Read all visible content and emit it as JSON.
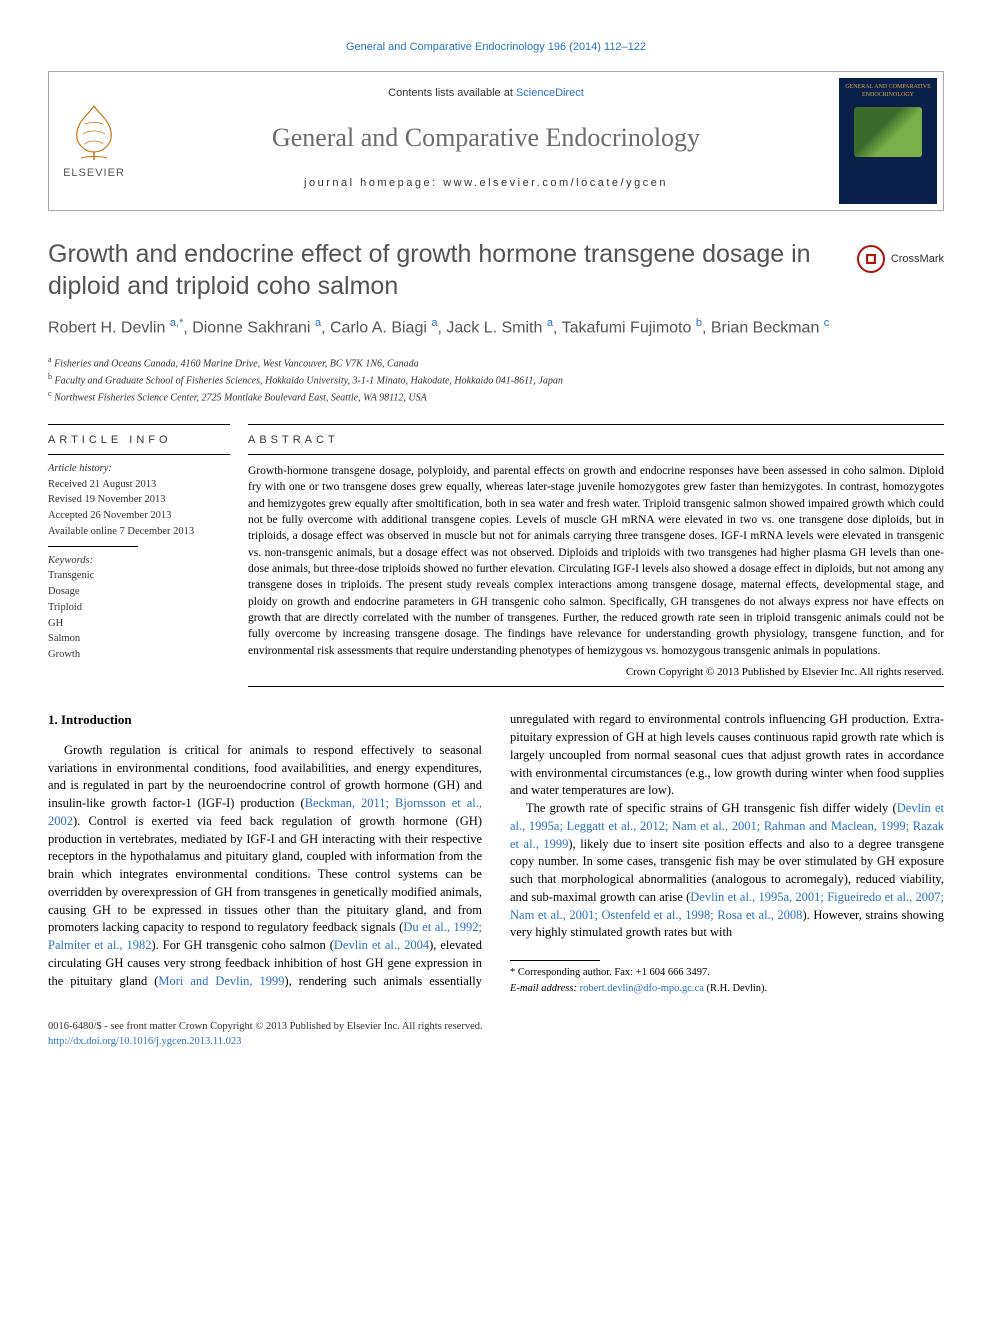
{
  "top_link": "General and Comparative Endocrinology 196 (2014) 112–122",
  "header": {
    "contents_prefix": "Contents lists available at ",
    "contents_link": "ScienceDirect",
    "journal_name": "General and Comparative Endocrinology",
    "homepage_label": "journal homepage: www.elsevier.com/locate/ygcen",
    "elsevier": "ELSEVIER",
    "cover_title": "GENERAL AND COMPARATIVE ENDOCRINOLOGY"
  },
  "crossmark": "CrossMark",
  "title": "Growth and endocrine effect of growth hormone transgene dosage in diploid and triploid coho salmon",
  "authors_html": "Robert H. Devlin <span class='aff'>a,</span><span class='aff'>*</span>, Dionne Sakhrani <span class='aff'>a</span>, Carlo A. Biagi <span class='aff'>a</span>, Jack L. Smith <span class='aff'>a</span>, Takafumi Fujimoto <span class='aff'>b</span>, Brian Beckman <span class='aff'>c</span>",
  "affiliations": [
    {
      "sup": "a",
      "text": "Fisheries and Oceans Canada, 4160 Marine Drive, West Vancouver, BC V7K 1N6, Canada"
    },
    {
      "sup": "b",
      "text": "Faculty and Graduate School of Fisheries Sciences, Hokkaido University, 3-1-1 Minato, Hakodate, Hokkaido 041-8611, Japan"
    },
    {
      "sup": "c",
      "text": "Northwest Fisheries Science Center, 2725 Montlake Boulevard East, Seattle, WA 98112, USA"
    }
  ],
  "article_info": {
    "head": "ARTICLE INFO",
    "history_label": "Article history:",
    "history": [
      "Received 21 August 2013",
      "Revised 19 November 2013",
      "Accepted 26 November 2013",
      "Available online 7 December 2013"
    ],
    "keywords_label": "Keywords:",
    "keywords": [
      "Transgenic",
      "Dosage",
      "Triploid",
      "GH",
      "Salmon",
      "Growth"
    ]
  },
  "abstract": {
    "head": "ABSTRACT",
    "text": "Growth-hormone transgene dosage, polyploidy, and parental effects on growth and endocrine responses have been assessed in coho salmon. Diploid fry with one or two transgene doses grew equally, whereas later-stage juvenile homozygotes grew faster than hemizygotes. In contrast, homozygotes and hemizygotes grew equally after smoltification, both in sea water and fresh water. Triploid transgenic salmon showed impaired growth which could not be fully overcome with additional transgene copies. Levels of muscle GH mRNA were elevated in two vs. one transgene dose diploids, but in triploids, a dosage effect was observed in muscle but not for animals carrying three transgene doses. IGF-I mRNA levels were elevated in transgenic vs. non-transgenic animals, but a dosage effect was not observed. Diploids and triploids with two transgenes had higher plasma GH levels than one-dose animals, but three-dose triploids showed no further elevation. Circulating IGF-I levels also showed a dosage effect in diploids, but not among any transgene doses in triploids. The present study reveals complex interactions among transgene dosage, maternal effects, developmental stage, and ploidy on growth and endocrine parameters in GH transgenic coho salmon. Specifically, GH transgenes do not always express nor have effects on growth that are directly correlated with the number of transgenes. Further, the reduced growth rate seen in triploid transgenic animals could not be fully overcome by increasing transgene dosage. The findings have relevance for understanding growth physiology, transgene function, and for environmental risk assessments that require understanding phenotypes of hemizygous vs. homozygous transgenic animals in populations.",
    "copyright": "Crown Copyright © 2013 Published by Elsevier Inc. All rights reserved."
  },
  "intro": {
    "head": "1. Introduction",
    "p1_pre": "Growth regulation is critical for animals to respond effectively to seasonal variations in environmental conditions, food availabilities, and energy expenditures, and is regulated in part by the neuroendocrine control of growth hormone (GH) and insulin-like growth factor-1 (IGF-I) production (",
    "p1_cite1": "Beckman, 2011; Bjornsson et al., 2002",
    "p1_mid": "). Control is exerted via feed back regulation of growth hormone (GH) production in vertebrates, mediated by IGF-I and GH interacting with their respective receptors in the hypothalamus and pituitary gland, coupled with information from the brain which integrates environmental conditions. These control systems can be overridden by overexpression of GH from transgenes in genetically modified animals, causing GH to be expressed in tissues other than the pituitary gland, and from promoters lacking capacity to respond to regulatory feedback signals (",
    "p1_cite2": "Du et al., 1992; Palmiter et al., 1982",
    "p1_post": "). For GH transgenic coho salmon (",
    "p1_cite3": "Devlin et al., 2004",
    "p1_after3": "), elevated circulating GH causes very strong feedback inhibition of host GH gene expression in the pituitary gland (",
    "p1_cite4": "Mori and Devlin, 1999",
    "p1_after4": "), rendering such animals essentially unregulated with regard to environmental controls influencing GH production. Extra-pituitary expression of GH at high levels causes continuous rapid growth rate which is largely uncoupled from normal seasonal cues that adjust growth rates in accordance with environmental circumstances (e.g., low growth during winter when food supplies and water temperatures are low).",
    "p2_pre": "The growth rate of specific strains of GH transgenic fish differ widely (",
    "p2_cite1": "Devlin et al., 1995a; Leggatt et al., 2012; Nam et al., 2001; Rahman and Maclean, 1999; Razak et al., 1999",
    "p2_mid": "), likely due to insert site position effects and also to a degree transgene copy number. In some cases, transgenic fish may be over stimulated by GH exposure such that morphological abnormalities (analogous to acromegaly), reduced viability, and sub-maximal growth can arise (",
    "p2_cite2": "Devlin et al., 1995a, 2001; Figueiredo et al., 2007; Nam et al., 2001; Ostenfeld et al., 1998; Rosa et al., 2008",
    "p2_post": "). However, strains showing very highly stimulated growth rates but with"
  },
  "corresponding": {
    "line": "* Corresponding author. Fax: +1 604 666 3497.",
    "email_label": "E-mail address: ",
    "email": "robert.devlin@dfo-mpo.gc.ca",
    "email_post": " (R.H. Devlin)."
  },
  "footer": {
    "line1": "0016-6480/$ - see front matter Crown Copyright © 2013 Published by Elsevier Inc. All rights reserved.",
    "doi": "http://dx.doi.org/10.1016/j.ygcen.2013.11.023"
  },
  "colors": {
    "link": "#2b72c4",
    "title_gray": "#535353",
    "journal_gray": "#6b6b6b",
    "crossmark_red": "#b3120c",
    "cover_bg": "#0a1f4a",
    "cover_gold": "#d4a84a"
  }
}
